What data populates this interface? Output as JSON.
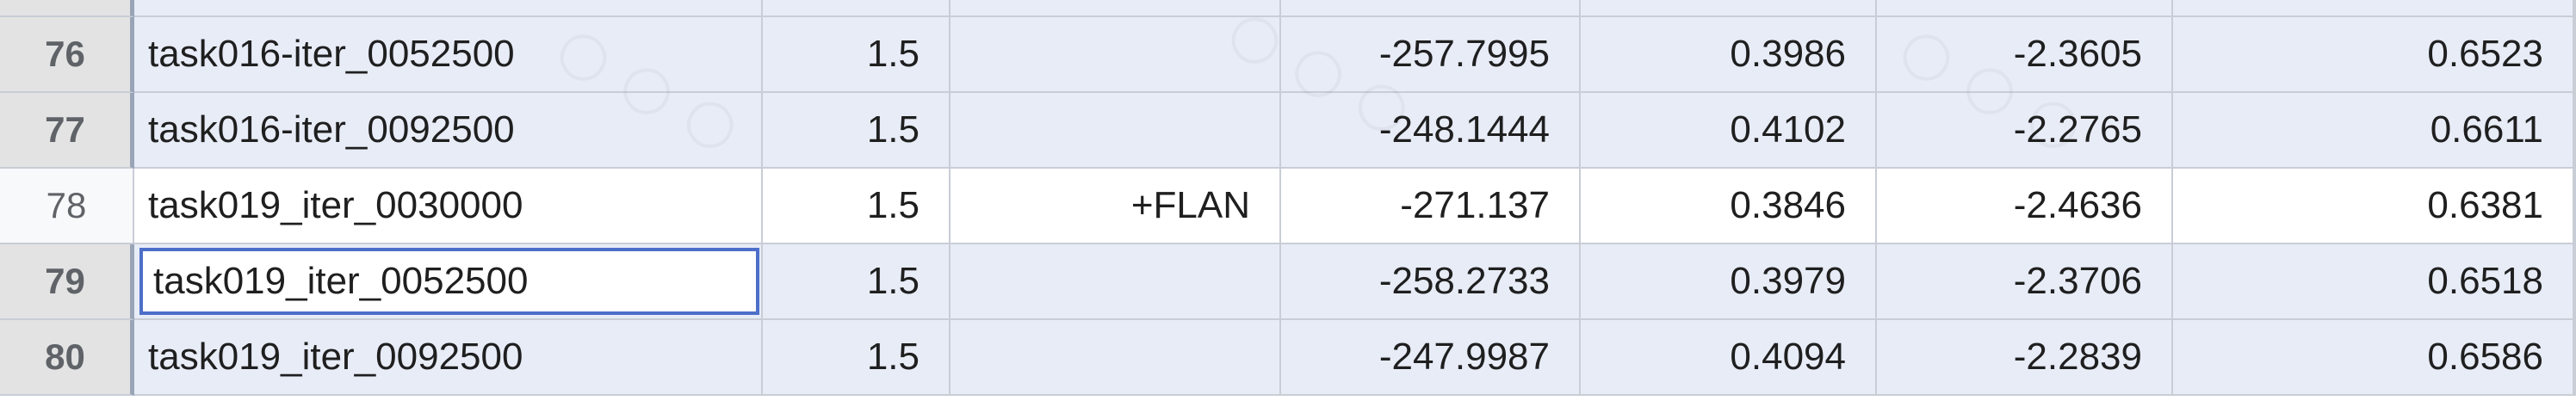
{
  "rows": [
    {
      "num": "76",
      "name": "task016-iter_0052500",
      "b": "1.5",
      "c": "",
      "d": "-257.7995",
      "e": "0.3986",
      "f": "-2.3605",
      "g": "0.6523",
      "selected": true
    },
    {
      "num": "77",
      "name": "task016-iter_0092500",
      "b": "1.5",
      "c": "",
      "d": "-248.1444",
      "e": "0.4102",
      "f": "-2.2765",
      "g": "0.6611",
      "selected": true
    },
    {
      "num": "78",
      "name": "task019_iter_0030000",
      "b": "1.5",
      "c": "+FLAN",
      "d": "-271.137",
      "e": "0.3846",
      "f": "-2.4636",
      "g": "0.6381",
      "selected": false
    },
    {
      "num": "79",
      "name": "task019_iter_0052500",
      "b": "1.5",
      "c": "",
      "d": "-258.2733",
      "e": "0.3979",
      "f": "-2.3706",
      "g": "0.6518",
      "selected": true,
      "active": true
    },
    {
      "num": "80",
      "name": "task019_iter_0092500",
      "b": "1.5",
      "c": "",
      "d": "-247.9987",
      "e": "0.4094",
      "f": "-2.2839",
      "g": "0.6586",
      "selected": true
    }
  ],
  "colors": {
    "selection_fill": "#e7ecf7",
    "selection_border": "#4d6fc9",
    "header_fill": "#e3e3e3",
    "gridline": "#c8cdd6"
  }
}
